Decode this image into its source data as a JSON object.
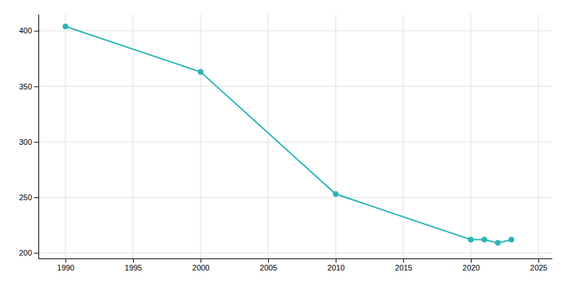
{
  "chart_data": {
    "type": "line",
    "x": [
      1990,
      2000,
      2010,
      2020,
      2021,
      2022,
      2023
    ],
    "values": [
      404,
      363,
      253,
      212,
      212,
      209,
      212
    ],
    "color": "#2ab5b5",
    "marker": "circle",
    "xlim": [
      1988,
      2026
    ],
    "ylim": [
      195,
      415
    ],
    "xticks": [
      1990,
      1995,
      2000,
      2005,
      2010,
      2015,
      2020,
      2025
    ],
    "yticks": [
      200,
      250,
      300,
      350,
      400
    ],
    "grid": true
  }
}
